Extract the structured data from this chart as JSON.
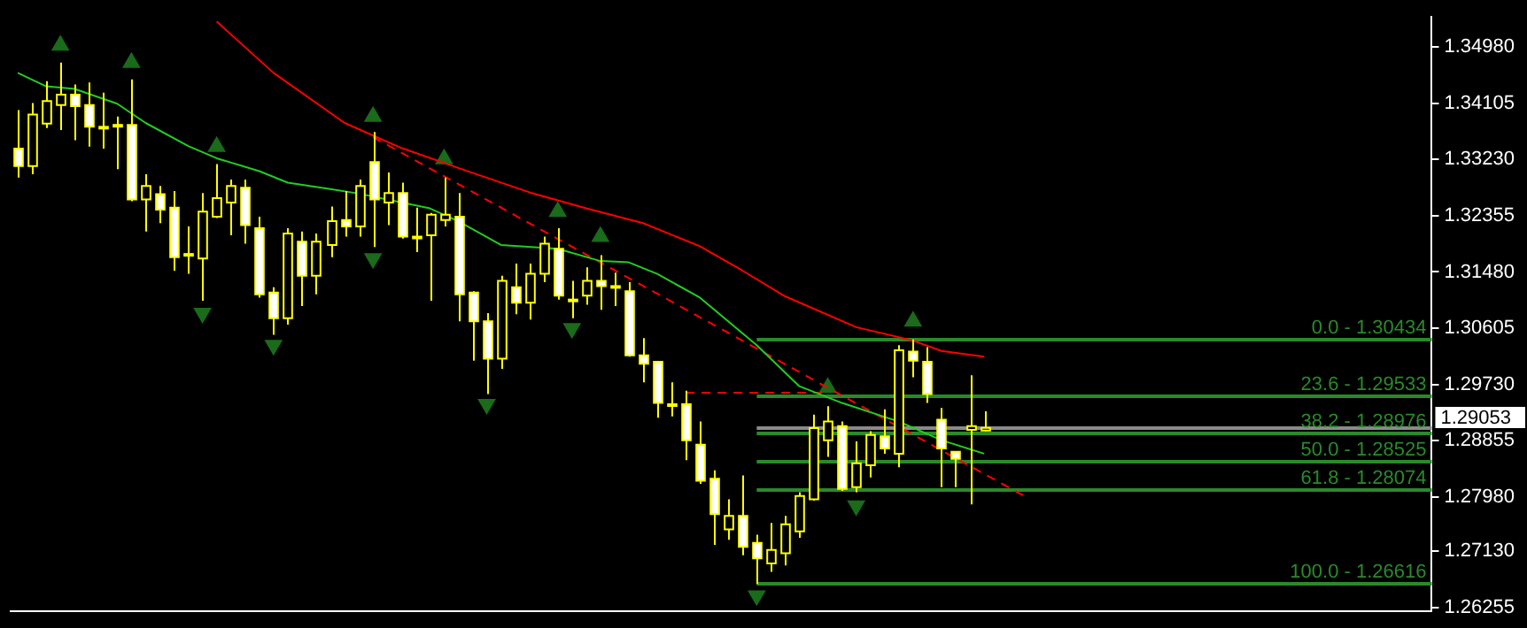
{
  "chart_data": {
    "type": "candlestick",
    "color": "#ffff00",
    "colors": [
      "#ffffff",
      "#000000",
      "#000000",
      "#000000",
      "#ffffff",
      "#ffffff",
      "#ffffff",
      "#ffffff",
      "#ffffff",
      "#000000",
      "#ffffff",
      "#ffffff",
      "#ffffff",
      "#000000",
      "#000000",
      "#000000",
      "#ffffff",
      "#ffffff",
      "#ffffff",
      "#000000",
      "#ffffff",
      "#000000",
      "#000000",
      "#ffffff",
      "#000000",
      "#ffffff",
      "#000000",
      "#ffffff",
      "#ffffff",
      "#000000",
      "#000000",
      "#ffffff",
      "#ffffff",
      "#ffffff",
      "#000000",
      "#ffffff",
      "#000000",
      "#000000",
      "#ffffff",
      "#ffffff",
      "#000000",
      "#ffffff",
      "#ffffff",
      "#ffffff",
      "#ffffff",
      "#ffffff",
      "#ffffff",
      "#ffffff",
      "#ffffff",
      "#ffffff",
      "#000000",
      "#ffffff",
      "#ffffff",
      "#000000",
      "#000000",
      "#000000",
      "#000000",
      "#000000",
      "#ffffff",
      "#000000",
      "#000000",
      "#ffffff",
      "#000000",
      "#ffffff",
      "#ffffff",
      "#ffffff",
      "#ffffff",
      "#000000",
      "#000000",
      null,
      null,
      null,
      null,
      null,
      null,
      null,
      null,
      null,
      null,
      null,
      null,
      null,
      null,
      null,
      null,
      null,
      null,
      null,
      null,
      null,
      null,
      null,
      null,
      null,
      null,
      null,
      null,
      null,
      null,
      null
    ],
    "categories": [
      null,
      null,
      null,
      null,
      null,
      null,
      null,
      null,
      null,
      null,
      null,
      null,
      null,
      null,
      null,
      null,
      null,
      null,
      null,
      null,
      null,
      null,
      null,
      null,
      null,
      null,
      null,
      null,
      null,
      null,
      null,
      null,
      null,
      null,
      null,
      null,
      null,
      null,
      null,
      null,
      null,
      null,
      null,
      null,
      null,
      null,
      null,
      null,
      null,
      null,
      null,
      null,
      null,
      null,
      null,
      null,
      null,
      null,
      null,
      null,
      null,
      null,
      null,
      null,
      null,
      null,
      null,
      null,
      null,
      null,
      null,
      null,
      null,
      null,
      null,
      null,
      null,
      null,
      null,
      null,
      null,
      null,
      null,
      null,
      null,
      null,
      null,
      null,
      null,
      null,
      null,
      null,
      null,
      null,
      null,
      null,
      null,
      null,
      null,
      null
    ],
    "ohlc": [
      [
        1.334,
        1.34,
        1.3295,
        1.3313
      ],
      [
        1.3313,
        1.3411,
        1.33,
        1.3393
      ],
      [
        1.3379,
        1.3445,
        1.3372,
        1.3414
      ],
      [
        1.3408,
        1.3474,
        1.3369,
        1.3424
      ],
      [
        1.3424,
        1.344,
        1.3353,
        1.3406
      ],
      [
        1.3408,
        1.3443,
        1.3343,
        1.3374
      ],
      [
        1.3374,
        1.3427,
        1.334,
        1.3373
      ],
      [
        1.3377,
        1.339,
        1.3308,
        1.3376
      ],
      [
        1.3377,
        1.3448,
        1.3258,
        1.3261
      ],
      [
        1.3261,
        1.33,
        1.3211,
        1.3282
      ],
      [
        1.3269,
        1.3282,
        1.3224,
        1.3245
      ],
      [
        1.3248,
        1.3274,
        1.315,
        1.3171
      ],
      [
        1.3176,
        1.3219,
        1.3145,
        1.3175
      ],
      [
        1.3169,
        1.3271,
        1.3103,
        1.3242
      ],
      [
        1.3234,
        1.3316,
        1.3232,
        1.3263
      ],
      [
        1.3256,
        1.3292,
        1.3205,
        1.3282
      ],
      [
        1.3279,
        1.3292,
        1.3192,
        1.3221
      ],
      [
        1.3216,
        1.3234,
        1.3108,
        1.3113
      ],
      [
        1.3116,
        1.3124,
        1.305,
        1.3076
      ],
      [
        1.3076,
        1.3216,
        1.3066,
        1.3208
      ],
      [
        1.3195,
        1.3211,
        1.3095,
        1.3142
      ],
      [
        1.3142,
        1.3208,
        1.3113,
        1.3195
      ],
      [
        1.319,
        1.325,
        1.3171,
        1.3227
      ],
      [
        1.3229,
        1.3274,
        1.3203,
        1.3219
      ],
      [
        1.3219,
        1.3292,
        1.3203,
        1.3282
      ],
      [
        1.3319,
        1.3366,
        1.3187,
        1.3261
      ],
      [
        1.3256,
        1.3303,
        1.3221,
        1.3271
      ],
      [
        1.3271,
        1.3287,
        1.32,
        1.3203
      ],
      [
        1.3203,
        1.3248,
        1.3179,
        1.3202
      ],
      [
        1.3205,
        1.324,
        1.3103,
        1.3237
      ],
      [
        1.3229,
        1.3295,
        1.3219,
        1.3237
      ],
      [
        1.3234,
        1.3271,
        1.3071,
        1.3113
      ],
      [
        1.3116,
        1.3118,
        1.301,
        1.3071
      ],
      [
        1.3071,
        1.3084,
        1.2958,
        1.3013
      ],
      [
        1.3013,
        1.3142,
        1.2997,
        1.3134
      ],
      [
        1.3124,
        1.3161,
        1.3082,
        1.31
      ],
      [
        1.31,
        1.3161,
        1.3074,
        1.3145
      ],
      [
        1.3145,
        1.3203,
        1.3132,
        1.3192
      ],
      [
        1.3184,
        1.3216,
        1.3105,
        1.3111
      ],
      [
        1.3105,
        1.3134,
        1.3076,
        1.3104
      ],
      [
        1.3111,
        1.3155,
        1.3097,
        1.3134
      ],
      [
        1.3134,
        1.3174,
        1.3089,
        1.3126
      ],
      [
        1.3126,
        1.3147,
        1.3095,
        1.3125
      ],
      [
        1.3118,
        1.3132,
        1.3016,
        1.3018
      ],
      [
        1.3018,
        1.3045,
        1.2976,
        1.3005
      ],
      [
        1.3008,
        1.3009,
        1.2921,
        1.2944
      ],
      [
        1.2942,
        1.2976,
        1.2923,
        1.2941
      ],
      [
        1.2942,
        1.2963,
        1.2855,
        1.2886
      ],
      [
        1.2879,
        1.2915,
        1.2818,
        1.2823
      ],
      [
        1.2826,
        1.2839,
        1.2723,
        1.2771
      ],
      [
        1.2747,
        1.2794,
        1.2731,
        1.2768
      ],
      [
        1.2768,
        1.2831,
        1.2707,
        1.272
      ],
      [
        1.2726,
        1.2739,
        1.2662,
        1.2702
      ],
      [
        1.2694,
        1.2757,
        1.2681,
        1.2715
      ],
      [
        1.271,
        1.2768,
        1.2691,
        1.2755
      ],
      [
        1.2744,
        1.2805,
        1.2734,
        1.2799
      ],
      [
        1.2794,
        1.2926,
        1.2792,
        1.2905
      ],
      [
        1.2886,
        1.2939,
        1.286,
        1.2915
      ],
      [
        1.2908,
        1.2915,
        1.2807,
        1.281
      ],
      [
        1.2813,
        1.2884,
        1.2805,
        1.285
      ],
      [
        1.2847,
        1.29,
        1.2828,
        1.2894
      ],
      [
        1.2892,
        1.2934,
        1.2865,
        1.2873
      ],
      [
        1.2865,
        1.3034,
        1.2844,
        1.3026
      ],
      [
        1.3024,
        1.3043,
        1.2984,
        1.301
      ],
      [
        1.3008,
        1.3031,
        1.2944,
        1.2958
      ],
      [
        1.2918,
        1.2936,
        1.2813,
        1.2873
      ],
      [
        1.2868,
        1.2869,
        1.2813,
        1.2857
      ],
      [
        1.2902,
        1.2987,
        1.2786,
        1.2908
      ],
      [
        1.2901,
        1.2931,
        1.29,
        1.29053
      ],
      null,
      null,
      null,
      null,
      null,
      null,
      null,
      null,
      null,
      null,
      null,
      null,
      null,
      null,
      null,
      null,
      null,
      null,
      null,
      null,
      null,
      null,
      null,
      null,
      null,
      null,
      null,
      null,
      null,
      null,
      null
    ],
    "series": [
      {
        "type": "line",
        "color": "#22cc22",
        "values": [
          1.3458,
          null,
          1.3437,
          null,
          1.3433,
          null,
          null,
          1.341,
          null,
          1.338,
          null,
          null,
          1.3344,
          null,
          1.3325,
          null,
          null,
          1.3305,
          null,
          1.3287,
          null,
          null,
          1.3277,
          null,
          1.327,
          null,
          null,
          null,
          null,
          1.3247,
          null,
          1.3227,
          null,
          null,
          1.319,
          null,
          null,
          null,
          1.3184,
          null,
          null,
          1.3165,
          null,
          1.3163,
          null,
          1.3145,
          null,
          null,
          1.3108,
          null,
          null,
          null,
          1.3034,
          null,
          null,
          1.297,
          null,
          null,
          1.2944,
          null,
          null,
          null,
          1.2915,
          null,
          null,
          1.2886,
          null,
          null,
          1.2865,
          null,
          null,
          null,
          null,
          null,
          null,
          null,
          null,
          null,
          null,
          null,
          null,
          null,
          null,
          null,
          null,
          null,
          null,
          null,
          null,
          null,
          null,
          null,
          null,
          null,
          null,
          null,
          null,
          null,
          null,
          null
        ]
      },
      {
        "type": "line",
        "color": "#ff0000",
        "values": [
          null,
          null,
          null,
          null,
          null,
          null,
          null,
          null,
          null,
          null,
          null,
          null,
          null,
          null,
          1.3538,
          null,
          null,
          null,
          1.3458,
          null,
          null,
          null,
          null,
          1.338,
          null,
          null,
          null,
          1.3341,
          null,
          null,
          null,
          1.331,
          null,
          null,
          null,
          null,
          1.3272,
          null,
          null,
          null,
          1.3247,
          null,
          null,
          null,
          1.3224,
          null,
          null,
          null,
          1.3188,
          null,
          null,
          1.315,
          null,
          null,
          1.311,
          null,
          null,
          null,
          null,
          1.3062,
          null,
          null,
          null,
          1.3041,
          null,
          1.3025,
          null,
          null,
          1.3016,
          null,
          null,
          null,
          null,
          null,
          null,
          null,
          null,
          null,
          null,
          null,
          null,
          null,
          null,
          null,
          null,
          null,
          null,
          null,
          null,
          null,
          null,
          null,
          null,
          null,
          null,
          null,
          null,
          null,
          null,
          null
        ]
      },
      {
        "type": "line",
        "color": "#ff0000",
        "line_style": "dashed",
        "values": [
          null,
          null,
          null,
          null,
          null,
          null,
          null,
          null,
          null,
          null,
          null,
          null,
          null,
          null,
          null,
          null,
          null,
          null,
          null,
          null,
          null,
          null,
          null,
          null,
          null,
          1.3358,
          null,
          null,
          null,
          null,
          null,
          null,
          null,
          null,
          null,
          null,
          null,
          null,
          null,
          null,
          null,
          null,
          null,
          null,
          null,
          null,
          null,
          null,
          null,
          null,
          null,
          null,
          null,
          null,
          null,
          null,
          null,
          null,
          null,
          null,
          null,
          null,
          null,
          null,
          null,
          null,
          null,
          null,
          null,
          null,
          null,
          1.2797,
          null,
          null,
          null,
          null,
          null,
          null,
          null,
          null,
          null,
          null,
          null,
          null,
          null,
          null,
          null,
          null,
          null,
          null,
          null,
          null,
          null,
          null,
          null,
          null,
          null,
          null,
          null,
          null
        ]
      },
      {
        "type": "line",
        "color": "#ff0000",
        "line_style": "dashed",
        "values": [
          null,
          null,
          null,
          null,
          null,
          null,
          null,
          null,
          null,
          null,
          null,
          null,
          null,
          null,
          null,
          null,
          null,
          null,
          null,
          null,
          null,
          null,
          null,
          null,
          null,
          null,
          null,
          null,
          null,
          null,
          null,
          null,
          null,
          null,
          null,
          null,
          null,
          null,
          null,
          null,
          null,
          null,
          null,
          null,
          null,
          null,
          null,
          1.296,
          null,
          null,
          null,
          null,
          null,
          null,
          null,
          null,
          null,
          1.296,
          null,
          null,
          null,
          null,
          null,
          null,
          null,
          null,
          null,
          null,
          null,
          null,
          null,
          null,
          null,
          null,
          null,
          null,
          null,
          null,
          null,
          null,
          null,
          null,
          null,
          null,
          null,
          null,
          null,
          null,
          null,
          null,
          null,
          null,
          null,
          null,
          null,
          null,
          null,
          null,
          null,
          null
        ]
      },
      {
        "type": "scatter",
        "color": "#1a6b1a",
        "marker": "triangle",
        "values": [
          null,
          null,
          null,
          1.3501,
          null,
          null,
          null,
          null,
          1.3474,
          null,
          null,
          null,
          null,
          null,
          1.3343,
          null,
          null,
          null,
          null,
          null,
          null,
          null,
          null,
          null,
          null,
          1.339,
          null,
          null,
          null,
          null,
          1.3324,
          null,
          null,
          null,
          null,
          null,
          null,
          null,
          1.3242,
          null,
          null,
          1.3203,
          null,
          null,
          null,
          null,
          null,
          null,
          null,
          null,
          null,
          null,
          null,
          null,
          null,
          null,
          null,
          1.2968,
          null,
          null,
          null,
          null,
          null,
          1.3071,
          null,
          null,
          null,
          null,
          null,
          null,
          null,
          null,
          null,
          null,
          null,
          null,
          null,
          null,
          null,
          null,
          null,
          null,
          null,
          null,
          null,
          null,
          null,
          null,
          null,
          null,
          null,
          null,
          null,
          null,
          null,
          null,
          null,
          null,
          null,
          null
        ]
      },
      {
        "type": "scatter",
        "color": "#1a6b1a",
        "marker": "triangle",
        "values": [
          null,
          null,
          null,
          null,
          null,
          null,
          null,
          null,
          null,
          null,
          null,
          null,
          null,
          1.3084,
          null,
          null,
          null,
          null,
          1.3034,
          null,
          null,
          null,
          null,
          null,
          null,
          1.3169,
          null,
          null,
          null,
          null,
          null,
          null,
          null,
          1.2942,
          null,
          null,
          null,
          null,
          null,
          1.306,
          null,
          null,
          null,
          null,
          null,
          null,
          null,
          null,
          null,
          null,
          null,
          null,
          1.2644,
          null,
          null,
          null,
          null,
          null,
          null,
          1.2784,
          null,
          null,
          null,
          null,
          null,
          null,
          null,
          null,
          null,
          null,
          null,
          null,
          null,
          null,
          null,
          null,
          null,
          null,
          null,
          null,
          null,
          null,
          null,
          null,
          null,
          null,
          null,
          null,
          null,
          null,
          null,
          null,
          null,
          null,
          null,
          null,
          null,
          null,
          null,
          null
        ]
      }
    ],
    "ylim": [
      1.262,
      1.3545
    ],
    "yticks": [
      {
        "value": 1.3498,
        "label": "1.34980"
      },
      {
        "value": 1.34105,
        "label": "1.34105"
      },
      {
        "value": 1.3323,
        "label": "1.33230"
      },
      {
        "value": 1.32355,
        "label": "1.32355"
      },
      {
        "value": 1.3148,
        "label": "1.31480"
      },
      {
        "value": 1.30605,
        "label": "1.30605"
      },
      {
        "value": 1.2973,
        "label": "1.29730"
      },
      {
        "value": 1.28855,
        "label": "1.28855"
      },
      {
        "value": 1.2798,
        "label": "1.27980"
      },
      {
        "value": 1.2713,
        "label": "1.27130"
      },
      {
        "value": 1.26255,
        "label": "1.26255"
      }
    ],
    "tick_labels": "y",
    "grid": false,
    "legend": false,
    "ref_lines": [
      {
        "axis": "y",
        "value": 1.30434,
        "color": "#2a8a2a"
      },
      {
        "axis": "y",
        "value": 1.29533,
        "color": "#2a8a2a"
      },
      {
        "axis": "y",
        "value": 1.28976,
        "color": "#2a8a2a"
      },
      {
        "axis": "y",
        "value": 1.28525,
        "color": "#2a8a2a"
      },
      {
        "axis": "y",
        "value": 1.28074,
        "color": "#2a8a2a"
      },
      {
        "axis": "y",
        "value": 1.26616,
        "color": "#2a8a2a"
      },
      {
        "axis": "y",
        "value": 1.29053,
        "label": "1.29053",
        "color": "#8a8a8a"
      }
    ],
    "annotations": [
      {
        "text": "0.0 - 1.30434",
        "y": 1.30434
      },
      {
        "text": "23.6 - 1.29533",
        "y": 1.29533
      },
      {
        "text": "38.2 - 1.28976",
        "y": 1.28976
      },
      {
        "text": "50.0 - 1.28525",
        "y": 1.28525
      },
      {
        "text": "61.8 - 1.28074",
        "y": 1.28074
      },
      {
        "text": "100.0 - 1.26616",
        "y": 1.26616
      }
    ]
  }
}
